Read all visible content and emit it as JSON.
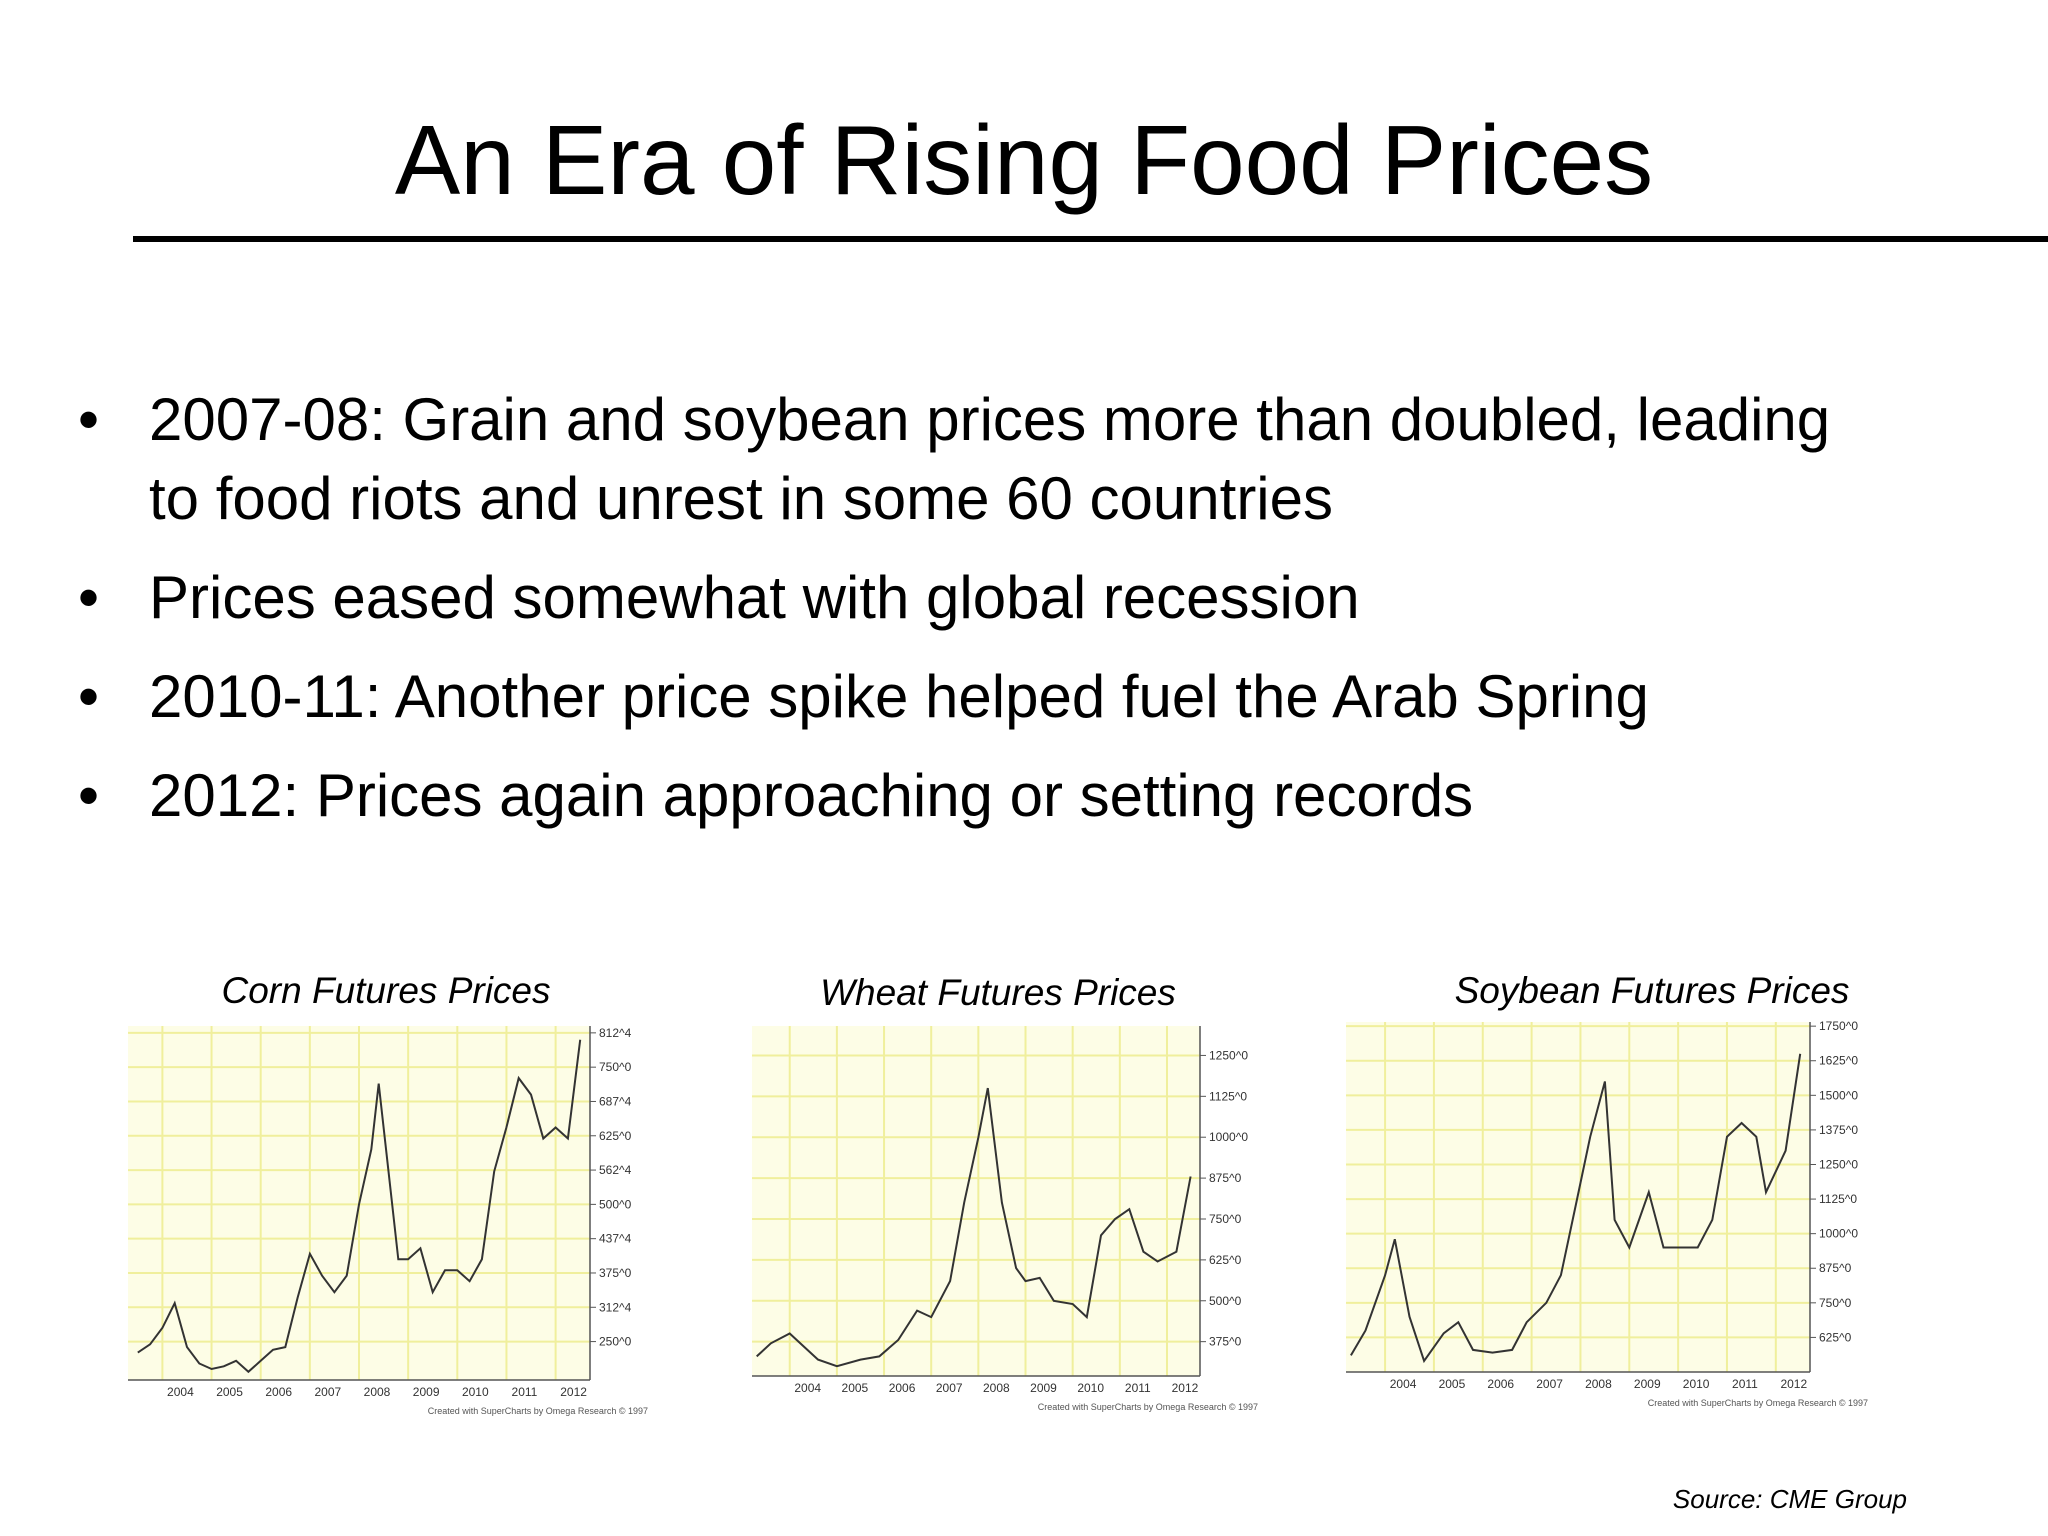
{
  "slide": {
    "title": "An Era of Rising Food Prices",
    "bullets": [
      "2007-08: Grain and soybean prices more than doubled, leading to food riots and unrest in some 60 countries",
      "Prices eased somewhat with global recession",
      "2010-11: Another price spike helped fuel the Arab Spring",
      "2012: Prices again approaching or setting records"
    ],
    "source": "Source: CME Group"
  },
  "chart_data": [
    {
      "type": "line",
      "title": "Corn Futures Prices",
      "credit": "Created with SuperCharts by Omega Research © 1997",
      "x": [
        2003.5,
        2003.75,
        2004.0,
        2004.25,
        2004.5,
        2004.75,
        2005.0,
        2005.25,
        2005.5,
        2005.75,
        2006.0,
        2006.25,
        2006.5,
        2006.75,
        2007.0,
        2007.25,
        2007.5,
        2007.75,
        2008.0,
        2008.25,
        2008.4,
        2008.6,
        2008.8,
        2009.0,
        2009.25,
        2009.5,
        2009.75,
        2010.0,
        2010.25,
        2010.5,
        2010.75,
        2011.0,
        2011.25,
        2011.5,
        2011.75,
        2012.0,
        2012.25,
        2012.5
      ],
      "series": [
        {
          "color": "#333333",
          "values": [
            230,
            245,
            275,
            320,
            240,
            210,
            200,
            205,
            215,
            195,
            215,
            235,
            240,
            330,
            410,
            370,
            340,
            370,
            500,
            600,
            720,
            560,
            400,
            400,
            420,
            340,
            380,
            380,
            360,
            400,
            560,
            640,
            730,
            700,
            620,
            640,
            620,
            800
          ]
        }
      ],
      "xlim": [
        2003.3,
        2012.7
      ],
      "xticks": [
        2004,
        2005,
        2006,
        2007,
        2008,
        2009,
        2010,
        2011,
        2012
      ],
      "ylim": [
        180,
        825
      ],
      "yticks": [
        {
          "value": 250,
          "label": "250^0"
        },
        {
          "value": 312.5,
          "label": "312^4"
        },
        {
          "value": 375,
          "label": "375^0"
        },
        {
          "value": 437.5,
          "label": "437^4"
        },
        {
          "value": 500,
          "label": "500^0"
        },
        {
          "value": 562.5,
          "label": "562^4"
        },
        {
          "value": 625,
          "label": "625^0"
        },
        {
          "value": 687.5,
          "label": "687^4"
        },
        {
          "value": 750,
          "label": "750^0"
        },
        {
          "value": 812.5,
          "label": "812^4"
        }
      ],
      "grid": true
    },
    {
      "type": "line",
      "title": "Wheat Futures Prices",
      "credit": "Created with SuperCharts by Omega Research © 1997",
      "x": [
        2003.3,
        2003.6,
        2004.0,
        2004.3,
        2004.6,
        2005.0,
        2005.5,
        2005.9,
        2006.3,
        2006.7,
        2007.0,
        2007.4,
        2007.7,
        2008.0,
        2008.2,
        2008.5,
        2008.8,
        2009.0,
        2009.3,
        2009.6,
        2010.0,
        2010.3,
        2010.6,
        2010.9,
        2011.2,
        2011.5,
        2011.8,
        2012.2,
        2012.5
      ],
      "series": [
        {
          "color": "#333333",
          "values": [
            330,
            370,
            400,
            360,
            320,
            300,
            320,
            330,
            380,
            470,
            450,
            560,
            800,
            1000,
            1150,
            800,
            600,
            560,
            570,
            500,
            490,
            450,
            700,
            750,
            780,
            650,
            620,
            650,
            880
          ]
        }
      ],
      "xlim": [
        2003.2,
        2012.7
      ],
      "xticks": [
        2004,
        2005,
        2006,
        2007,
        2008,
        2009,
        2010,
        2011,
        2012
      ],
      "ylim": [
        270,
        1340
      ],
      "yticks": [
        {
          "value": 375,
          "label": "375^0"
        },
        {
          "value": 500,
          "label": "500^0"
        },
        {
          "value": 625,
          "label": "625^0"
        },
        {
          "value": 750,
          "label": "750^0"
        },
        {
          "value": 875,
          "label": "875^0"
        },
        {
          "value": 1000,
          "label": "1000^0"
        },
        {
          "value": 1125,
          "label": "1125^0"
        },
        {
          "value": 1250,
          "label": "1250^0"
        }
      ],
      "grid": true
    },
    {
      "type": "line",
      "title": "Soybean Futures Prices",
      "credit": "Created with SuperCharts by Omega Research © 1997",
      "x": [
        2003.3,
        2003.6,
        2004.0,
        2004.2,
        2004.5,
        2004.8,
        2005.2,
        2005.5,
        2005.8,
        2006.2,
        2006.6,
        2006.9,
        2007.3,
        2007.6,
        2007.9,
        2008.2,
        2008.5,
        2008.7,
        2009.0,
        2009.4,
        2009.7,
        2010.0,
        2010.4,
        2010.7,
        2011.0,
        2011.3,
        2011.6,
        2011.8,
        2012.2,
        2012.5
      ],
      "series": [
        {
          "color": "#333333",
          "values": [
            560,
            650,
            850,
            980,
            700,
            540,
            640,
            680,
            580,
            570,
            580,
            680,
            750,
            850,
            1100,
            1350,
            1550,
            1050,
            950,
            1150,
            950,
            950,
            950,
            1050,
            1350,
            1400,
            1350,
            1150,
            1300,
            1650
          ]
        }
      ],
      "xlim": [
        2003.2,
        2012.7
      ],
      "xticks": [
        2004,
        2005,
        2006,
        2007,
        2008,
        2009,
        2010,
        2011,
        2012
      ],
      "ylim": [
        500,
        1765
      ],
      "yticks": [
        {
          "value": 625,
          "label": "625^0"
        },
        {
          "value": 750,
          "label": "750^0"
        },
        {
          "value": 875,
          "label": "875^0"
        },
        {
          "value": 1000,
          "label": "1000^0"
        },
        {
          "value": 1125,
          "label": "1125^0"
        },
        {
          "value": 1250,
          "label": "1250^0"
        },
        {
          "value": 1375,
          "label": "1375^0"
        },
        {
          "value": 1500,
          "label": "1500^0"
        },
        {
          "value": 1625,
          "label": "1625^0"
        },
        {
          "value": 1750,
          "label": "1750^0"
        }
      ],
      "grid": true
    }
  ]
}
